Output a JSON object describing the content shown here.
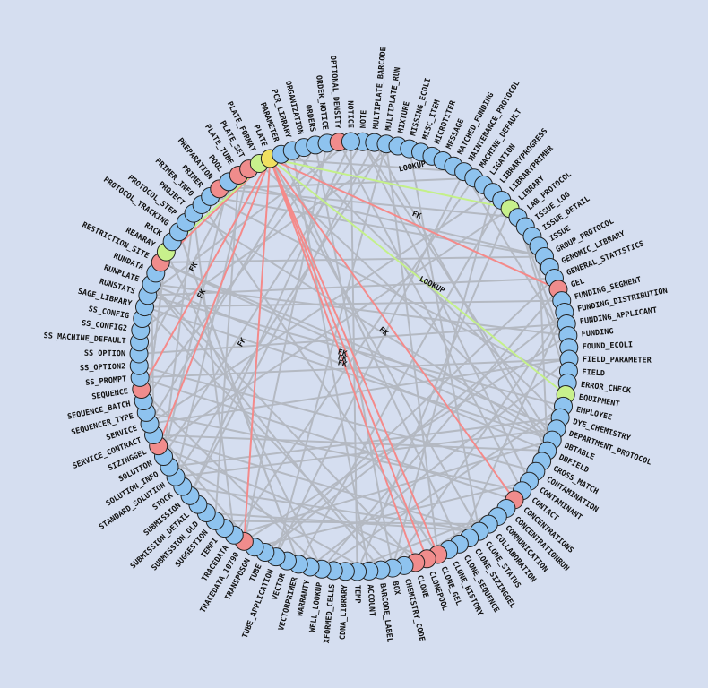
{
  "nodes": [
    {
      "label": "NOTE",
      "color": "#8ec3ef"
    },
    {
      "label": "MULTIPLATE_BARCODE",
      "color": "#8ec3ef"
    },
    {
      "label": "MULTIPLATE_RUN",
      "color": "#8ec3ef"
    },
    {
      "label": "MIXTURE",
      "color": "#8ec3ef"
    },
    {
      "label": "MISSING_ECOLI",
      "color": "#8ec3ef"
    },
    {
      "label": "MISC_ITEM",
      "color": "#8ec3ef"
    },
    {
      "label": "MICROTITER",
      "color": "#8ec3ef"
    },
    {
      "label": "MESSAGE",
      "color": "#8ec3ef"
    },
    {
      "label": "MATCHED_FUNDING",
      "color": "#8ec3ef"
    },
    {
      "label": "MAINTENANCE_PROTOCOL",
      "color": "#8ec3ef"
    },
    {
      "label": "MACHINE_DEFAULT",
      "color": "#8ec3ef"
    },
    {
      "label": "LIGATION",
      "color": "#8ec3ef"
    },
    {
      "label": "LIBRARYPROGRESS",
      "color": "#8ec3ef"
    },
    {
      "label": "LIBRARYPRIMER",
      "color": "#8ec3ef"
    },
    {
      "label": "LIBRARY",
      "color": "#c8f08c"
    },
    {
      "label": "LAB_PROTOCOL",
      "color": "#8ec3ef"
    },
    {
      "label": "ISSUE_LOG",
      "color": "#8ec3ef"
    },
    {
      "label": "ISSUE_DETAIL",
      "color": "#8ec3ef"
    },
    {
      "label": "ISSUE",
      "color": "#8ec3ef"
    },
    {
      "label": "GROUP_PROTOCOL",
      "color": "#8ec3ef"
    },
    {
      "label": "GENOMIC_LIBRARY",
      "color": "#8ec3ef"
    },
    {
      "label": "GENERAL_STATISTICS",
      "color": "#8ec3ef"
    },
    {
      "label": "GEL",
      "color": "#f08c8c"
    },
    {
      "label": "FUNDING_SEGMENT",
      "color": "#8ec3ef"
    },
    {
      "label": "FUNDING_DISTRIBUTION",
      "color": "#8ec3ef"
    },
    {
      "label": "FUNDING_APPLICANT",
      "color": "#8ec3ef"
    },
    {
      "label": "FUNDING",
      "color": "#8ec3ef"
    },
    {
      "label": "FOUND_ECOLI",
      "color": "#8ec3ef"
    },
    {
      "label": "FIELD_PARAMETER",
      "color": "#8ec3ef"
    },
    {
      "label": "FIELD",
      "color": "#8ec3ef"
    },
    {
      "label": "ERROR_CHECK",
      "color": "#8ec3ef"
    },
    {
      "label": "EQUIPMENT",
      "color": "#c8f08c"
    },
    {
      "label": "EMPLOYEE",
      "color": "#8ec3ef"
    },
    {
      "label": "DYE_CHEMISTRY",
      "color": "#8ec3ef"
    },
    {
      "label": "DEPARTMENT_PROTOCOL",
      "color": "#8ec3ef"
    },
    {
      "label": "DBTABLE",
      "color": "#8ec3ef"
    },
    {
      "label": "DBFIELD",
      "color": "#8ec3ef"
    },
    {
      "label": "CROSS_MATCH",
      "color": "#8ec3ef"
    },
    {
      "label": "CONTAMINATION",
      "color": "#8ec3ef"
    },
    {
      "label": "CONTAMINANT",
      "color": "#8ec3ef"
    },
    {
      "label": "CONTACT",
      "color": "#8ec3ef"
    },
    {
      "label": "CONCENTRATIONS",
      "color": "#f08c8c"
    },
    {
      "label": "CONCENTRATIONRUN",
      "color": "#8ec3ef"
    },
    {
      "label": "COMMUNICATION",
      "color": "#8ec3ef"
    },
    {
      "label": "COLLABORATION",
      "color": "#8ec3ef"
    },
    {
      "label": "CLONE_STATUS",
      "color": "#8ec3ef"
    },
    {
      "label": "CLONE_SIZINGGEL",
      "color": "#8ec3ef"
    },
    {
      "label": "CLONE_SEQUENCE",
      "color": "#8ec3ef"
    },
    {
      "label": "CLONE_HISTORY",
      "color": "#8ec3ef"
    },
    {
      "label": "CLONE_GEL",
      "color": "#f08c8c"
    },
    {
      "label": "CLONEPOOL",
      "color": "#f08c8c"
    },
    {
      "label": "CLONE",
      "color": "#f08c8c"
    },
    {
      "label": "CHEMISTRY_CODE",
      "color": "#8ec3ef"
    },
    {
      "label": "BOX",
      "color": "#8ec3ef"
    },
    {
      "label": "BARCODE_LABEL",
      "color": "#8ec3ef"
    },
    {
      "label": "ACCOUNT",
      "color": "#8ec3ef"
    },
    {
      "label": "TEMP",
      "color": "#8ec3ef"
    },
    {
      "label": "CDNA_LIBRARY",
      "color": "#8ec3ef"
    },
    {
      "label": "XFORMED_CELLS",
      "color": "#8ec3ef"
    },
    {
      "label": "WELL_LOOKUP",
      "color": "#8ec3ef"
    },
    {
      "label": "WARRANTY",
      "color": "#8ec3ef"
    },
    {
      "label": "VECTORPRIMER",
      "color": "#8ec3ef"
    },
    {
      "label": "VECTOR",
      "color": "#8ec3ef"
    },
    {
      "label": "TUBE_APPLICATION",
      "color": "#8ec3ef"
    },
    {
      "label": "TUBE",
      "color": "#8ec3ef"
    },
    {
      "label": "TRANSPOSON",
      "color": "#8ec3ef"
    },
    {
      "label": "TRACEDATA_10790",
      "color": "#f08c8c"
    },
    {
      "label": "TRACEDATA",
      "color": "#8ec3ef"
    },
    {
      "label": "TEMPI",
      "color": "#8ec3ef"
    },
    {
      "label": "SUGGESTION",
      "color": "#8ec3ef"
    },
    {
      "label": "SUBMISSION_OLD",
      "color": "#8ec3ef"
    },
    {
      "label": "SUBMISSION_DETAIL",
      "color": "#8ec3ef"
    },
    {
      "label": "SUBMISSION",
      "color": "#8ec3ef"
    },
    {
      "label": "STOCK",
      "color": "#8ec3ef"
    },
    {
      "label": "STANDARD_SOLUTION",
      "color": "#8ec3ef"
    },
    {
      "label": "SOLUTION_INFO",
      "color": "#8ec3ef"
    },
    {
      "label": "SOLUTION",
      "color": "#8ec3ef"
    },
    {
      "label": "SIZINGGEL",
      "color": "#f08c8c"
    },
    {
      "label": "SERVICE_CONTRACT",
      "color": "#8ec3ef"
    },
    {
      "label": "SERVICE",
      "color": "#8ec3ef"
    },
    {
      "label": "SEQUENCER_TYPE",
      "color": "#8ec3ef"
    },
    {
      "label": "SEQUENCE_BATCH",
      "color": "#8ec3ef"
    },
    {
      "label": "SEQUENCE",
      "color": "#f08c8c"
    },
    {
      "label": "SS_PROMPT",
      "color": "#8ec3ef"
    },
    {
      "label": "SS_OPTION2",
      "color": "#8ec3ef"
    },
    {
      "label": "SS_OPTION",
      "color": "#8ec3ef"
    },
    {
      "label": "SS_MACHINE_DEFAULT",
      "color": "#8ec3ef"
    },
    {
      "label": "SS_CONFIG2",
      "color": "#8ec3ef"
    },
    {
      "label": "SS_CONFIG",
      "color": "#8ec3ef"
    },
    {
      "label": "SAGE_LIBRARY",
      "color": "#8ec3ef"
    },
    {
      "label": "RUNSTATS",
      "color": "#8ec3ef"
    },
    {
      "label": "RUNPLATE",
      "color": "#8ec3ef"
    },
    {
      "label": "RUNDATA",
      "color": "#8ec3ef"
    },
    {
      "label": "RESTRICTION_SITE",
      "color": "#f08c8c"
    },
    {
      "label": "REARRAY",
      "color": "#c8f08c"
    },
    {
      "label": "RACK",
      "color": "#8ec3ef"
    },
    {
      "label": "PROTOCOL_TRACKING",
      "color": "#8ec3ef"
    },
    {
      "label": "PROTOCOL_STEP",
      "color": "#8ec3ef"
    },
    {
      "label": "PROJECT",
      "color": "#8ec3ef"
    },
    {
      "label": "PRIMER_INFO",
      "color": "#8ec3ef"
    },
    {
      "label": "PRIMER",
      "color": "#8ec3ef"
    },
    {
      "label": "PREPARATION",
      "color": "#f08c8c"
    },
    {
      "label": "POOL",
      "color": "#8ec3ef"
    },
    {
      "label": "PLATE_TUBE",
      "color": "#f08c8c"
    },
    {
      "label": "PLATE_SET",
      "color": "#f08c8c"
    },
    {
      "label": "PLATE_FORMAT",
      "color": "#c8f08c"
    },
    {
      "label": "PLATE",
      "color": "#f0e060"
    },
    {
      "label": "PARAMETER",
      "color": "#8ec3ef"
    },
    {
      "label": "PCR_LIBRARY",
      "color": "#8ec3ef"
    },
    {
      "label": "ORGANIZATION",
      "color": "#8ec3ef"
    },
    {
      "label": "ORDERS",
      "color": "#8ec3ef"
    },
    {
      "label": "ORDER_NOTICE",
      "color": "#8ec3ef"
    },
    {
      "label": "OPTIONAL_DENSITY",
      "color": "#f08c8c"
    },
    {
      "label": "NOTICE",
      "color": "#8ec3ef"
    }
  ],
  "edge_labels": [
    "LOOKUP",
    "FK",
    "LOOKUP",
    "FK",
    "FK",
    "FK",
    "FK",
    "FK",
    "FK",
    "FK"
  ]
}
